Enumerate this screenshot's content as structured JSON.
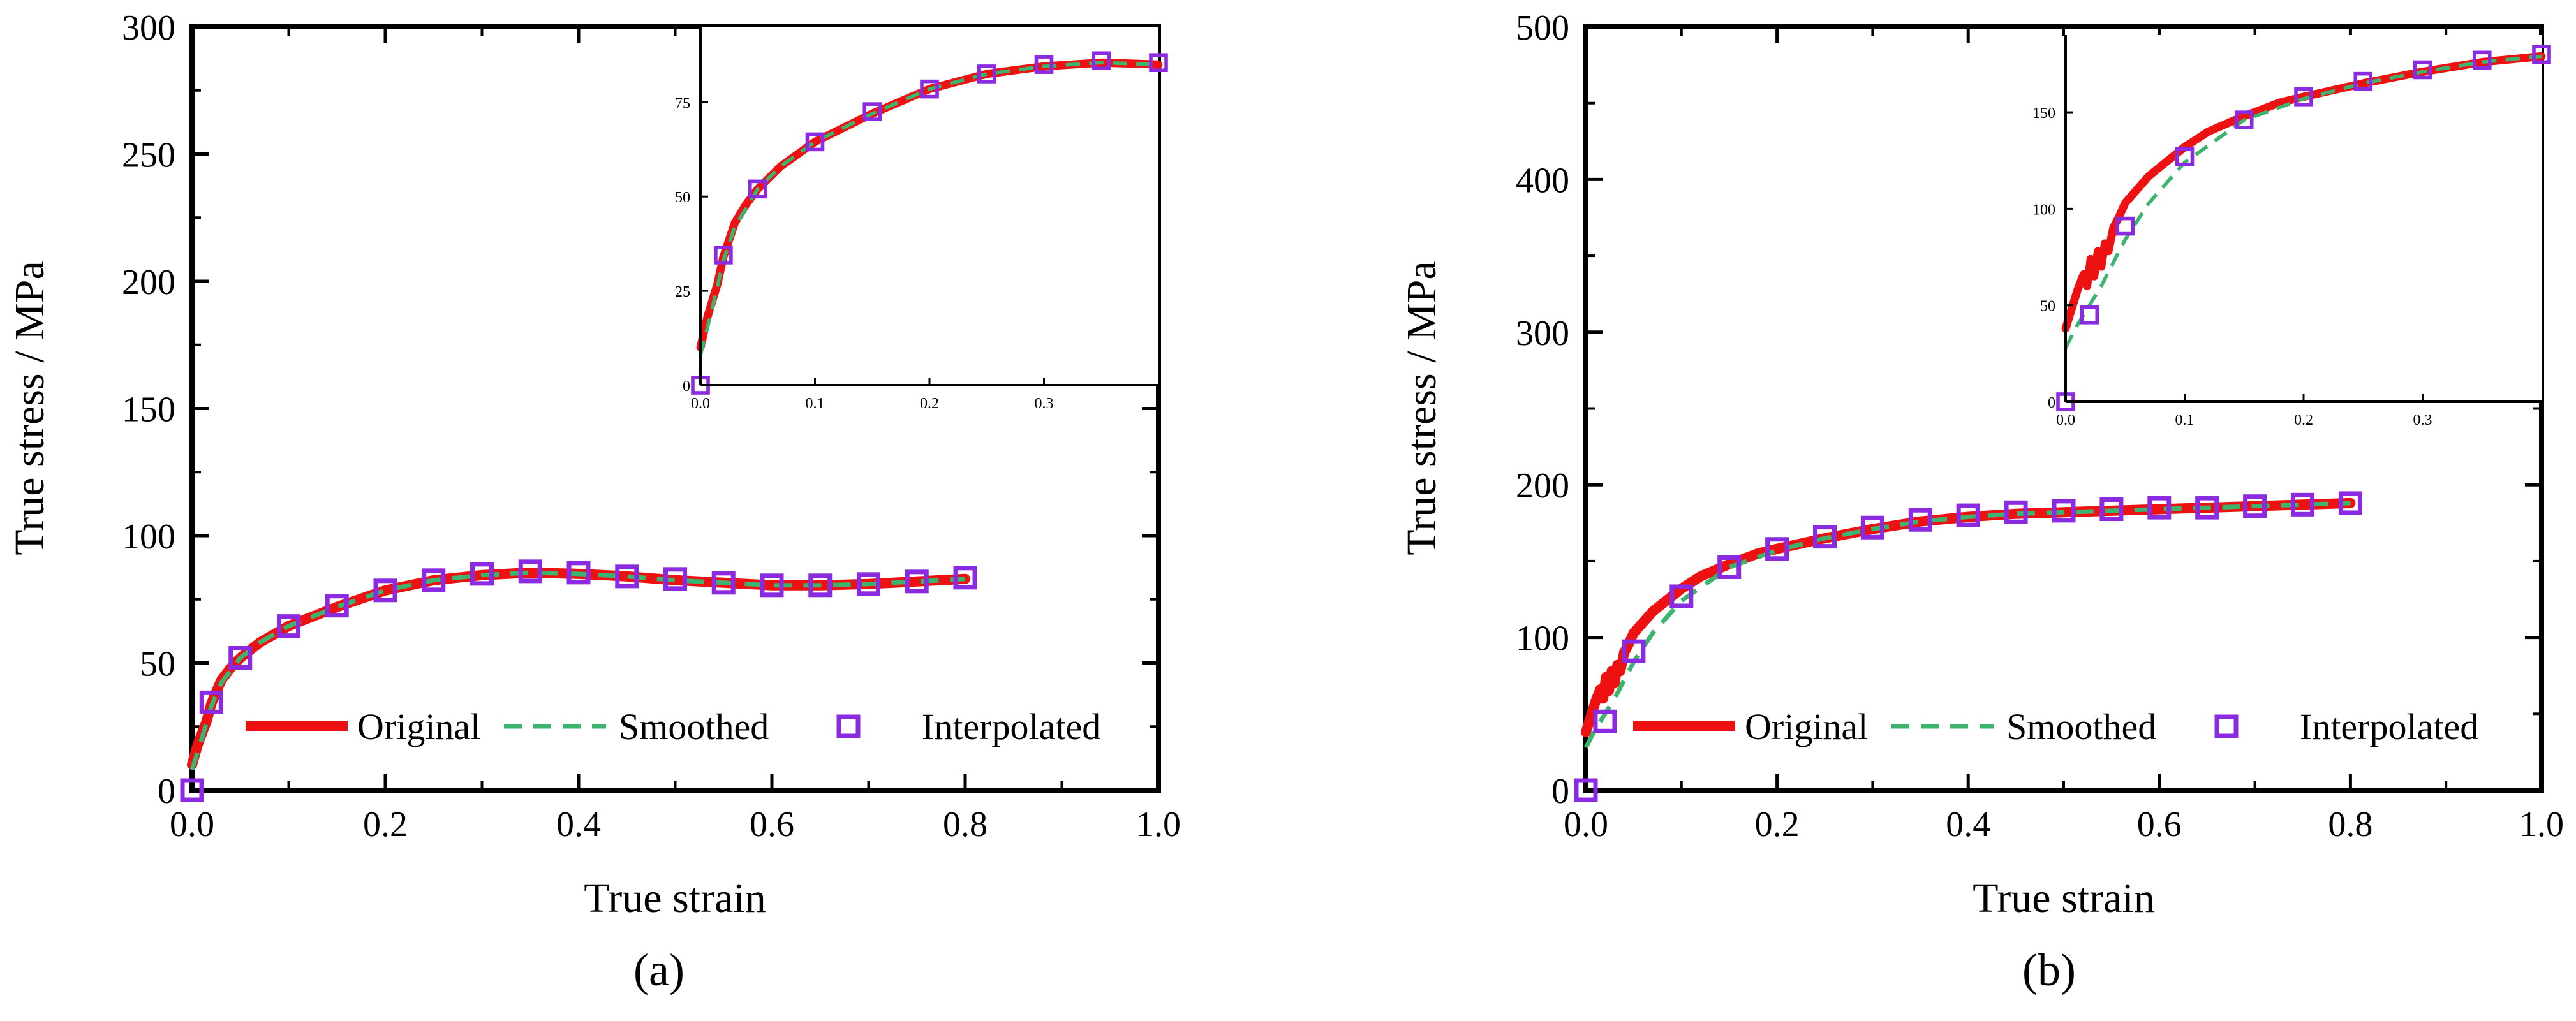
{
  "legend": {
    "original": "Original",
    "smoothed": "Smoothed",
    "interpolated": "Interpolated"
  },
  "colors": {
    "original": "#ee1111",
    "smoothed": "#3cb46e",
    "interpolated": "#8a2be2",
    "axis": "#000000"
  },
  "chart_data": [
    {
      "type": "line",
      "panel": "a",
      "label": "(a)",
      "xlabel": "True strain",
      "ylabel": "True stress / MPa",
      "xlim": [
        0,
        1.0
      ],
      "ylim": [
        0,
        300
      ],
      "xticks": [
        0.0,
        0.2,
        0.4,
        0.6,
        0.8,
        1.0
      ],
      "xtick_labels": [
        "0.0",
        "0.2",
        "0.4",
        "0.6",
        "0.8",
        "1.0"
      ],
      "yticks": [
        0,
        50,
        100,
        150,
        200,
        250,
        300
      ],
      "ytick_labels": [
        "0",
        "50",
        "100",
        "150",
        "200",
        "250",
        "300"
      ],
      "series": [
        {
          "name": "Original",
          "x": [
            0.0,
            0.003,
            0.006,
            0.01,
            0.015,
            0.02,
            0.03,
            0.04,
            0.05,
            0.07,
            0.1,
            0.15,
            0.2,
            0.25,
            0.3,
            0.35,
            0.4,
            0.45,
            0.5,
            0.55,
            0.6,
            0.65,
            0.7,
            0.75,
            0.8
          ],
          "y": [
            10,
            14,
            18,
            22,
            27,
            34,
            43,
            48,
            52,
            58,
            64.5,
            72,
            78.5,
            82.5,
            84.5,
            85.5,
            85,
            84,
            82.5,
            81.5,
            80.5,
            80.5,
            81,
            82,
            83
          ]
        },
        {
          "name": "Smoothed",
          "x": [
            0.0,
            0.005,
            0.01,
            0.02,
            0.03,
            0.05,
            0.07,
            0.1,
            0.15,
            0.2,
            0.25,
            0.3,
            0.35,
            0.4,
            0.45,
            0.5,
            0.55,
            0.6,
            0.65,
            0.7,
            0.75,
            0.8
          ],
          "y": [
            8,
            14,
            20,
            33,
            42,
            52,
            58,
            64.5,
            72,
            78.5,
            82.5,
            84.5,
            85.5,
            85,
            84,
            82.5,
            81.5,
            80.5,
            80.5,
            81,
            82,
            83
          ]
        },
        {
          "name": "Interpolated",
          "x": [
            0.0,
            0.02,
            0.05,
            0.1,
            0.15,
            0.2,
            0.25,
            0.3,
            0.35,
            0.4,
            0.45,
            0.5,
            0.55,
            0.6,
            0.65,
            0.7,
            0.75,
            0.8
          ],
          "y": [
            0,
            34.5,
            52,
            64.5,
            72.5,
            78.5,
            82.5,
            85,
            86,
            85.5,
            84,
            83,
            81.5,
            80.5,
            80.5,
            81,
            82,
            83.5
          ]
        }
      ],
      "inset": {
        "xlim": [
          0,
          0.4
        ],
        "ylim": [
          0,
          95
        ],
        "xticks": [
          0.0,
          0.1,
          0.2,
          0.3
        ],
        "xtick_labels": [
          "0.0",
          "0.1",
          "0.2",
          "0.3"
        ],
        "yticks": [
          0,
          25,
          50,
          75
        ],
        "ytick_labels": [
          "0",
          "25",
          "50",
          "75"
        ]
      }
    },
    {
      "type": "line",
      "panel": "b",
      "label": "(b)",
      "xlabel": "True strain",
      "ylabel": "True stress / MPa",
      "xlim": [
        0,
        1.0
      ],
      "ylim": [
        0,
        500
      ],
      "xticks": [
        0.0,
        0.2,
        0.4,
        0.6,
        0.8,
        1.0
      ],
      "xtick_labels": [
        "0.0",
        "0.2",
        "0.4",
        "0.6",
        "0.8",
        "1.0"
      ],
      "yticks": [
        0,
        100,
        200,
        300,
        400,
        500
      ],
      "ytick_labels": [
        "0",
        "100",
        "200",
        "300",
        "400",
        "500"
      ],
      "series": [
        {
          "name": "Original",
          "x": [
            0.0,
            0.005,
            0.01,
            0.015,
            0.018,
            0.021,
            0.024,
            0.027,
            0.03,
            0.033,
            0.036,
            0.04,
            0.045,
            0.05,
            0.06,
            0.07,
            0.08,
            0.1,
            0.12,
            0.15,
            0.18,
            0.2,
            0.25,
            0.3,
            0.35,
            0.4,
            0.45,
            0.5,
            0.55,
            0.6,
            0.65,
            0.7,
            0.75,
            0.8
          ],
          "y": [
            38,
            48,
            58,
            66,
            60,
            74,
            65,
            78,
            70,
            82,
            78,
            90,
            96,
            103,
            110,
            117,
            122,
            132,
            140,
            148,
            155,
            158,
            165,
            171,
            176,
            179,
            181,
            182,
            183,
            184,
            185,
            186,
            187,
            188
          ]
        },
        {
          "name": "Smoothed",
          "x": [
            0.0,
            0.01,
            0.02,
            0.03,
            0.04,
            0.05,
            0.07,
            0.1,
            0.15,
            0.2,
            0.25,
            0.3,
            0.35,
            0.4,
            0.45,
            0.5,
            0.55,
            0.6,
            0.65,
            0.7,
            0.75,
            0.8
          ],
          "y": [
            28,
            40,
            50,
            60,
            72,
            84,
            103,
            124,
            146,
            157,
            165,
            171,
            176,
            179,
            181,
            182,
            183,
            184,
            185,
            186,
            187,
            188
          ]
        },
        {
          "name": "Interpolated",
          "x": [
            0.0,
            0.02,
            0.05,
            0.1,
            0.15,
            0.2,
            0.25,
            0.3,
            0.35,
            0.4,
            0.45,
            0.5,
            0.55,
            0.6,
            0.65,
            0.7,
            0.75,
            0.8
          ],
          "y": [
            0,
            45,
            91,
            127,
            146,
            158,
            166,
            172,
            177,
            180,
            182,
            183,
            184,
            185,
            185,
            186,
            187,
            188
          ]
        }
      ],
      "inset": {
        "xlim": [
          0,
          0.4
        ],
        "ylim": [
          0,
          190
        ],
        "xticks": [
          0.0,
          0.1,
          0.2,
          0.3
        ],
        "xtick_labels": [
          "0.0",
          "0.1",
          "0.2",
          "0.3"
        ],
        "yticks": [
          0,
          50,
          100,
          150
        ],
        "ytick_labels": [
          "0",
          "50",
          "100",
          "150"
        ]
      }
    }
  ]
}
